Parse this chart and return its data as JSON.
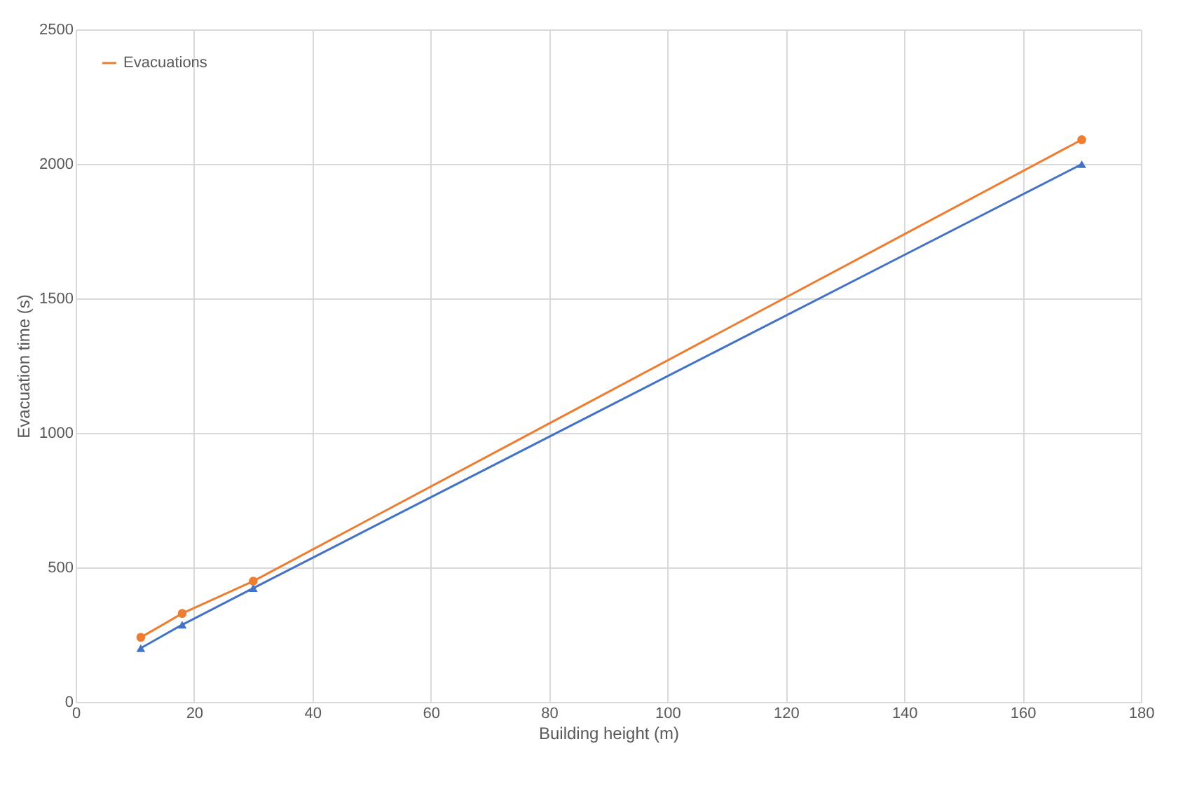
{
  "chart_data": {
    "type": "line",
    "xlabel": "Building height (m)",
    "ylabel": "Evacuation time (s)",
    "x": [
      11,
      18,
      30,
      170
    ],
    "series": [
      {
        "color": "#4472c4",
        "marker": "triangle",
        "values": [
          200,
          287,
          423,
          1999
        ]
      },
      {
        "name": "Evacuations",
        "color": "#ed7d31",
        "marker": "circle",
        "values": [
          240,
          329,
          449,
          2090
        ]
      }
    ],
    "xlim": [
      0,
      180
    ],
    "xticks": [
      0,
      20,
      40,
      60,
      80,
      100,
      120,
      140,
      160,
      180
    ],
    "ylim": [
      0,
      2500
    ],
    "yticks": [
      0,
      500,
      1000,
      1500,
      2000,
      2500
    ],
    "grid": true,
    "legend": "top left"
  }
}
